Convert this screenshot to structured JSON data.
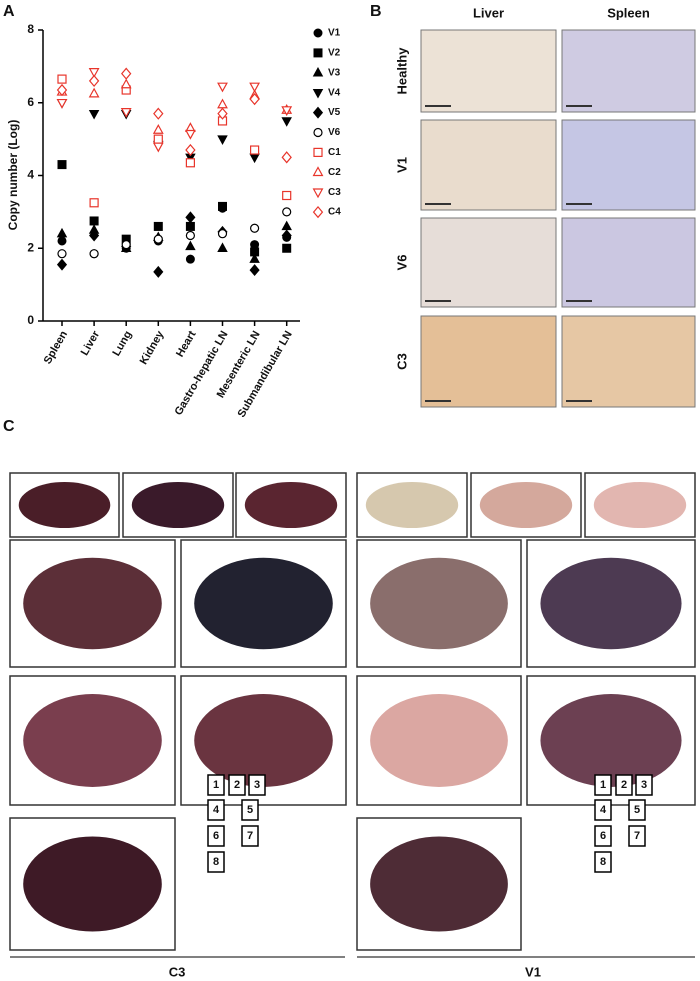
{
  "panel_labels": [
    "A",
    "B",
    "C"
  ],
  "chart_data": {
    "type": "scatter",
    "y_label": "Copy number (Log)",
    "categories": [
      "Spleen",
      "Liver",
      "Lung",
      "Kidney",
      "Heart",
      "Gastro-hepatic LN",
      "Mesenteric LN",
      "Submandibular LN"
    ],
    "ylim": [
      0,
      8
    ],
    "yticks": [
      0,
      2,
      4,
      6,
      8
    ],
    "series": [
      {
        "name": "V1",
        "color": "#000000",
        "marker": "circle",
        "filled": true,
        "values": [
          2.2,
          1.85,
          2.0,
          2.2,
          1.7,
          3.1,
          2.1,
          2.3
        ]
      },
      {
        "name": "V2",
        "color": "#000000",
        "marker": "square",
        "filled": true,
        "values": [
          4.3,
          2.75,
          2.25,
          2.6,
          2.6,
          3.15,
          1.9,
          2.0
        ]
      },
      {
        "name": "V3",
        "color": "#000000",
        "marker": "triangle-up",
        "filled": true,
        "values": [
          2.4,
          2.5,
          2.0,
          2.3,
          2.05,
          2.0,
          1.7,
          2.6
        ]
      },
      {
        "name": "V4",
        "color": "#000000",
        "marker": "triangle-down",
        "filled": true,
        "values": [
          6.0,
          5.7,
          5.7,
          4.85,
          4.5,
          5.0,
          4.5,
          5.5
        ]
      },
      {
        "name": "V5",
        "color": "#000000",
        "marker": "diamond",
        "filled": true,
        "values": [
          1.55,
          2.35,
          2.05,
          1.35,
          2.85,
          2.45,
          1.4,
          2.35
        ]
      },
      {
        "name": "V6",
        "color": "#000000",
        "marker": "circle",
        "filled": false,
        "values": [
          1.85,
          1.85,
          2.1,
          2.25,
          2.35,
          2.4,
          2.55,
          3.0
        ]
      },
      {
        "name": "C1",
        "color": "#e8352b",
        "marker": "square",
        "filled": false,
        "values": [
          6.65,
          3.25,
          6.35,
          5.0,
          4.35,
          5.5,
          4.7,
          3.45
        ]
      },
      {
        "name": "C2",
        "color": "#e8352b",
        "marker": "triangle-up",
        "filled": false,
        "values": [
          6.3,
          6.25,
          6.5,
          5.25,
          5.3,
          5.95,
          6.2,
          5.8
        ]
      },
      {
        "name": "C3",
        "color": "#e8352b",
        "marker": "triangle-down",
        "filled": false,
        "values": [
          6.0,
          6.85,
          5.75,
          4.8,
          5.15,
          6.45,
          6.45,
          5.8
        ]
      },
      {
        "name": "C4",
        "color": "#e8352b",
        "marker": "diamond",
        "filled": false,
        "values": [
          6.35,
          6.6,
          6.8,
          5.7,
          4.7,
          5.7,
          6.1,
          4.5
        ]
      }
    ]
  },
  "panel_b": {
    "columns": [
      "Liver",
      "Spleen"
    ],
    "rows": [
      "Healthy",
      "V1",
      "V6",
      "C3"
    ]
  },
  "panel_c": {
    "groups": [
      {
        "label": "C3",
        "keys": [
          "1",
          "2",
          "3",
          "4",
          "5",
          "6",
          "7",
          "8"
        ]
      },
      {
        "label": "V1",
        "keys": [
          "1",
          "2",
          "3",
          "4",
          "5",
          "6",
          "7",
          "8"
        ]
      }
    ]
  }
}
